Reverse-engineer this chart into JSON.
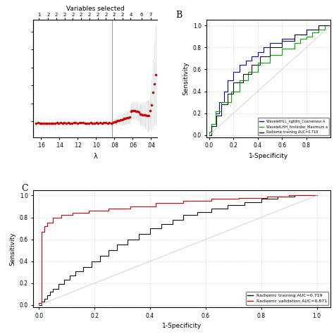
{
  "panel_A": {
    "top_label": "Variables selected",
    "top_ticks_pos": [
      0.162,
      0.152,
      0.143,
      0.134,
      0.125,
      0.116,
      0.107,
      0.098,
      0.089,
      0.08,
      0.071,
      0.062,
      0.05,
      0.04
    ],
    "top_ticks_labels": [
      "1",
      "2",
      "2",
      "2",
      "2",
      "2",
      "2",
      "2",
      "2",
      "2",
      "2",
      "4",
      "6",
      "7"
    ],
    "xlabel": "λ",
    "x_ticks": [
      0.16,
      0.14,
      0.12,
      0.1,
      0.08,
      0.06,
      0.04
    ],
    "x_tick_labels": [
      ".16",
      ".14",
      ".12",
      ".10",
      ".08",
      ".06",
      ".04"
    ],
    "vline_x": 0.082
  },
  "panel_B": {
    "label": "B",
    "xlabel": "1-Specificity",
    "ylabel": "Sensitivity",
    "x_ticks": [
      0.0,
      0.2,
      0.4,
      0.6,
      0.8
    ],
    "y_ticks": [
      0.0,
      0.2,
      0.4,
      0.6,
      0.8,
      1.0
    ],
    "legend": [
      {
        "label": "WaveletHLL_ngtdm_Coarseness A",
        "color": "#0000cc"
      },
      {
        "label": "WaveletLHH_firstorder_Maximum a",
        "color": "#00aa00"
      },
      {
        "label": "Radiomic training AUC=0.719",
        "color": "#111111"
      }
    ]
  },
  "panel_C": {
    "label": "C",
    "xlabel": "1-Specificity",
    "ylabel": "Sensitivity",
    "x_ticks": [
      0.0,
      0.2,
      0.4,
      0.6,
      0.8,
      1.0
    ],
    "y_ticks": [
      0.0,
      0.2,
      0.4,
      0.6,
      0.8,
      1.0
    ],
    "legend": [
      {
        "label": "Radiomic training AUC=0.719",
        "color": "#111111"
      },
      {
        "label": "Radiomic validation AUC=0.871",
        "color": "#cc0000"
      }
    ]
  }
}
